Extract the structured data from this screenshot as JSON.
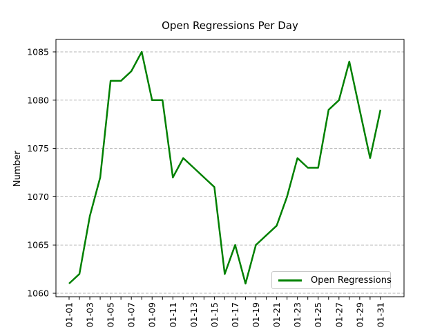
{
  "chart_data": {
    "type": "line",
    "title": "Open Regressions Per Day",
    "xlabel": "",
    "ylabel": "Number",
    "categories": [
      "01-01",
      "01-02",
      "01-03",
      "01-04",
      "01-05",
      "01-06",
      "01-07",
      "01-08",
      "01-09",
      "01-10",
      "01-11",
      "01-12",
      "01-13",
      "01-14",
      "01-15",
      "01-16",
      "01-17",
      "01-18",
      "01-19",
      "01-20",
      "01-21",
      "01-22",
      "01-23",
      "01-24",
      "01-25",
      "01-26",
      "01-27",
      "01-28",
      "01-29",
      "01-30",
      "01-31"
    ],
    "series": [
      {
        "name": "Open Regressions",
        "color": "#008000",
        "values": [
          1061,
          1062,
          1068,
          1072,
          1082,
          1082,
          1083,
          1085,
          1080,
          1080,
          1072,
          1074,
          1073,
          1072,
          1071,
          1062,
          1065,
          1061,
          1065,
          1066,
          1067,
          1070,
          1074,
          1073,
          1073,
          1079,
          1080,
          1084,
          1079,
          1074,
          1079
        ]
      }
    ],
    "y_ticks": [
      1060,
      1065,
      1070,
      1075,
      1080,
      1085
    ],
    "x_tick_labels_shown": [
      "01-01",
      "01-03",
      "01-05",
      "01-07",
      "01-09",
      "01-11",
      "01-13",
      "01-15",
      "01-17",
      "01-19",
      "01-21",
      "01-23",
      "01-25",
      "01-27",
      "01-29",
      "01-31"
    ],
    "x_tick_label_rotation": 90,
    "ylim": [
      1059.8,
      1086.2
    ],
    "grid": "horizontal-dashed",
    "legend": {
      "label": "Open Regressions",
      "position": "lower right"
    }
  },
  "colors": {
    "line": "#008000",
    "grid": "#b4b4b4",
    "axis": "#000000",
    "text": "#000000",
    "legend_border": "#c8c8c8",
    "background": "#ffffff"
  }
}
